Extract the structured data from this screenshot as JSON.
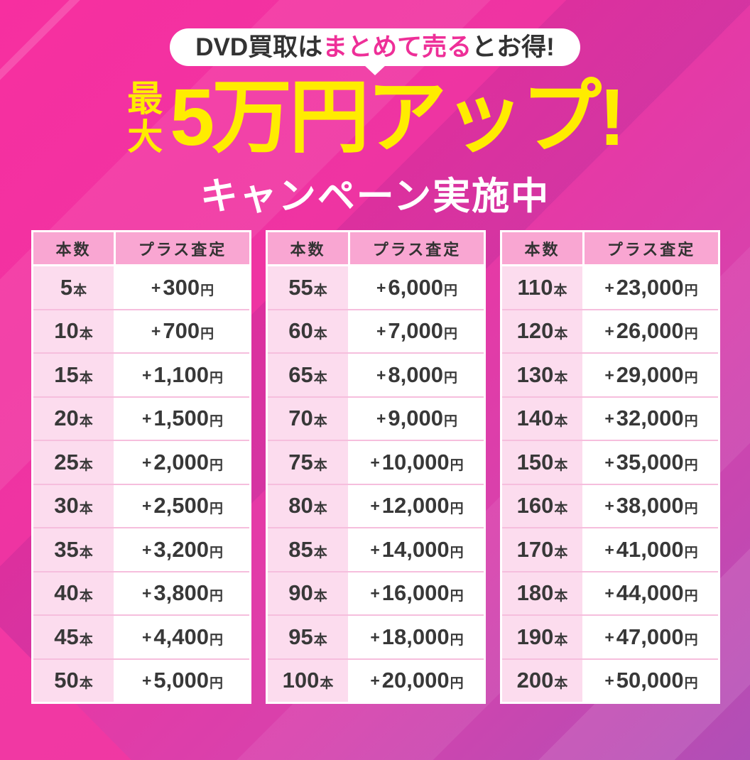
{
  "badge": {
    "prefix": "DVD買取は",
    "highlight": "まとめて売る",
    "suffix": "とお得!"
  },
  "headline": {
    "max_top": "最",
    "max_bottom": "大",
    "main": "5万円アップ!",
    "subtitle": "キャンペーン実施中"
  },
  "headers": {
    "count": "本数",
    "value": "プラス査定"
  },
  "labels": {
    "plus": "+",
    "unit_count": "本",
    "unit_yen": "円"
  },
  "tables": [
    {
      "rows": [
        {
          "n": "5",
          "v": "300"
        },
        {
          "n": "10",
          "v": "700"
        },
        {
          "n": "15",
          "v": "1,100"
        },
        {
          "n": "20",
          "v": "1,500"
        },
        {
          "n": "25",
          "v": "2,000"
        },
        {
          "n": "30",
          "v": "2,500"
        },
        {
          "n": "35",
          "v": "3,200"
        },
        {
          "n": "40",
          "v": "3,800"
        },
        {
          "n": "45",
          "v": "4,400"
        },
        {
          "n": "50",
          "v": "5,000"
        }
      ]
    },
    {
      "rows": [
        {
          "n": "55",
          "v": "6,000"
        },
        {
          "n": "60",
          "v": "7,000"
        },
        {
          "n": "65",
          "v": "8,000"
        },
        {
          "n": "70",
          "v": "9,000"
        },
        {
          "n": "75",
          "v": "10,000"
        },
        {
          "n": "80",
          "v": "12,000"
        },
        {
          "n": "85",
          "v": "14,000"
        },
        {
          "n": "90",
          "v": "16,000"
        },
        {
          "n": "95",
          "v": "18,000"
        },
        {
          "n": "100",
          "v": "20,000"
        }
      ]
    },
    {
      "rows": [
        {
          "n": "110",
          "v": "23,000"
        },
        {
          "n": "120",
          "v": "26,000"
        },
        {
          "n": "130",
          "v": "29,000"
        },
        {
          "n": "140",
          "v": "32,000"
        },
        {
          "n": "150",
          "v": "35,000"
        },
        {
          "n": "160",
          "v": "38,000"
        },
        {
          "n": "170",
          "v": "41,000"
        },
        {
          "n": "180",
          "v": "44,000"
        },
        {
          "n": "190",
          "v": "47,000"
        },
        {
          "n": "200",
          "v": "50,000"
        }
      ]
    }
  ],
  "colors": {
    "background_pink": "#f0309f",
    "background_purple": "#b050b6",
    "accent_pink": "#ee2f98",
    "accent_yellow": "#ffec00",
    "header_pink": "#f9a6d2",
    "row_pink": "#fcdcee",
    "text_dark": "#333333"
  }
}
